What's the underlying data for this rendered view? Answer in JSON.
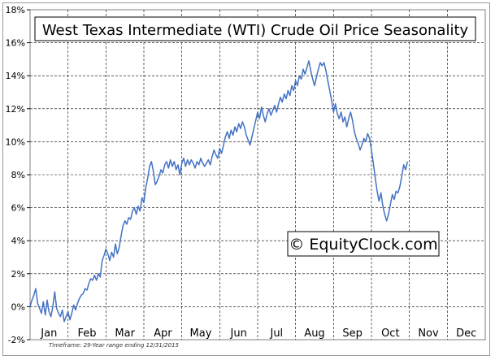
{
  "chart_data": {
    "type": "line",
    "title": "West Texas Intermediate (WTI) Crude Oil Price Seasonality",
    "watermark": "© EquityClock.com",
    "footnote": "Timeframe: 29-Year range ending 12/31/2015",
    "xlabel": "",
    "ylabel": "",
    "ylim": [
      -2,
      18
    ],
    "y_ticks": [
      -2,
      0,
      2,
      4,
      6,
      8,
      10,
      12,
      14,
      16,
      18
    ],
    "y_tick_labels": [
      "-2%",
      "0%",
      "2%",
      "4%",
      "6%",
      "8%",
      "10%",
      "12%",
      "14%",
      "16%",
      "18%"
    ],
    "x_range": [
      0,
      12
    ],
    "months": [
      "Jan",
      "Feb",
      "Mar",
      "Apr",
      "May",
      "Jun",
      "Jul",
      "Aug",
      "Sep",
      "Oct",
      "Nov",
      "Dec"
    ],
    "grid": true,
    "line_color": "#4472c4",
    "series": [
      {
        "points": [
          [
            0.0,
            0.0
          ],
          [
            0.05,
            0.4
          ],
          [
            0.1,
            0.7
          ],
          [
            0.15,
            1.1
          ],
          [
            0.2,
            0.2
          ],
          [
            0.25,
            -0.1
          ],
          [
            0.3,
            -0.4
          ],
          [
            0.35,
            0.3
          ],
          [
            0.4,
            -0.5
          ],
          [
            0.45,
            0.4
          ],
          [
            0.5,
            -0.3
          ],
          [
            0.55,
            -0.6
          ],
          [
            0.6,
            0.0
          ],
          [
            0.65,
            0.9
          ],
          [
            0.7,
            -0.1
          ],
          [
            0.75,
            -0.4
          ],
          [
            0.8,
            -0.6
          ],
          [
            0.85,
            -0.2
          ],
          [
            0.9,
            -0.9
          ],
          [
            0.95,
            -0.6
          ],
          [
            1.0,
            -0.3
          ],
          [
            1.05,
            -0.8
          ],
          [
            1.1,
            -0.4
          ],
          [
            1.15,
            0.1
          ],
          [
            1.2,
            -0.2
          ],
          [
            1.25,
            0.2
          ],
          [
            1.3,
            0.5
          ],
          [
            1.35,
            0.7
          ],
          [
            1.4,
            0.8
          ],
          [
            1.45,
            1.1
          ],
          [
            1.5,
            1.0
          ],
          [
            1.55,
            1.4
          ],
          [
            1.6,
            1.7
          ],
          [
            1.65,
            1.6
          ],
          [
            1.7,
            1.9
          ],
          [
            1.75,
            1.6
          ],
          [
            1.8,
            2.0
          ],
          [
            1.85,
            1.8
          ],
          [
            1.9,
            2.8
          ],
          [
            1.95,
            3.1
          ],
          [
            2.0,
            3.5
          ],
          [
            2.05,
            3.2
          ],
          [
            2.1,
            2.8
          ],
          [
            2.15,
            3.3
          ],
          [
            2.2,
            3.0
          ],
          [
            2.25,
            3.8
          ],
          [
            2.3,
            3.2
          ],
          [
            2.35,
            3.6
          ],
          [
            2.4,
            4.3
          ],
          [
            2.45,
            4.9
          ],
          [
            2.5,
            5.2
          ],
          [
            2.55,
            5.0
          ],
          [
            2.6,
            5.4
          ],
          [
            2.65,
            5.3
          ],
          [
            2.7,
            5.8
          ],
          [
            2.75,
            6.0
          ],
          [
            2.8,
            5.6
          ],
          [
            2.85,
            6.1
          ],
          [
            2.9,
            5.8
          ],
          [
            2.95,
            6.6
          ],
          [
            3.0,
            6.3
          ],
          [
            3.05,
            7.2
          ],
          [
            3.1,
            7.8
          ],
          [
            3.15,
            8.5
          ],
          [
            3.2,
            8.8
          ],
          [
            3.25,
            8.2
          ],
          [
            3.3,
            7.4
          ],
          [
            3.35,
            7.6
          ],
          [
            3.4,
            7.9
          ],
          [
            3.45,
            8.3
          ],
          [
            3.5,
            8.1
          ],
          [
            3.55,
            8.6
          ],
          [
            3.6,
            8.8
          ],
          [
            3.65,
            8.4
          ],
          [
            3.7,
            8.9
          ],
          [
            3.75,
            8.5
          ],
          [
            3.8,
            8.8
          ],
          [
            3.85,
            8.3
          ],
          [
            3.9,
            8.6
          ],
          [
            3.95,
            8.0
          ],
          [
            4.0,
            8.7
          ],
          [
            4.05,
            9.0
          ],
          [
            4.1,
            8.5
          ],
          [
            4.15,
            8.9
          ],
          [
            4.2,
            8.6
          ],
          [
            4.25,
            8.9
          ],
          [
            4.3,
            8.7
          ],
          [
            4.35,
            8.4
          ],
          [
            4.4,
            8.8
          ],
          [
            4.45,
            8.6
          ],
          [
            4.5,
            9.0
          ],
          [
            4.55,
            8.7
          ],
          [
            4.6,
            8.5
          ],
          [
            4.65,
            8.7
          ],
          [
            4.7,
            8.9
          ],
          [
            4.75,
            8.6
          ],
          [
            4.8,
            9.1
          ],
          [
            4.85,
            9.5
          ],
          [
            4.9,
            9.2
          ],
          [
            4.95,
            9.0
          ],
          [
            5.0,
            9.6
          ],
          [
            5.05,
            9.3
          ],
          [
            5.1,
            9.8
          ],
          [
            5.15,
            10.3
          ],
          [
            5.2,
            10.6
          ],
          [
            5.25,
            10.2
          ],
          [
            5.3,
            10.7
          ],
          [
            5.35,
            10.4
          ],
          [
            5.4,
            10.9
          ],
          [
            5.45,
            10.6
          ],
          [
            5.5,
            11.1
          ],
          [
            5.55,
            10.8
          ],
          [
            5.6,
            11.2
          ],
          [
            5.65,
            10.9
          ],
          [
            5.7,
            10.4
          ],
          [
            5.75,
            10.1
          ],
          [
            5.8,
            9.8
          ],
          [
            5.85,
            10.3
          ],
          [
            5.9,
            10.8
          ],
          [
            5.95,
            11.3
          ],
          [
            6.0,
            11.8
          ],
          [
            6.05,
            11.4
          ],
          [
            6.1,
            12.1
          ],
          [
            6.15,
            11.6
          ],
          [
            6.2,
            11.2
          ],
          [
            6.25,
            11.7
          ],
          [
            6.3,
            12.0
          ],
          [
            6.35,
            11.6
          ],
          [
            6.4,
            11.9
          ],
          [
            6.45,
            12.2
          ],
          [
            6.5,
            11.8
          ],
          [
            6.55,
            12.3
          ],
          [
            6.6,
            12.7
          ],
          [
            6.65,
            12.4
          ],
          [
            6.7,
            12.9
          ],
          [
            6.75,
            12.6
          ],
          [
            6.8,
            13.1
          ],
          [
            6.85,
            12.8
          ],
          [
            6.9,
            13.4
          ],
          [
            6.95,
            13.1
          ],
          [
            7.0,
            13.7
          ],
          [
            7.05,
            13.4
          ],
          [
            7.1,
            14.0
          ],
          [
            7.15,
            13.8
          ],
          [
            7.2,
            14.4
          ],
          [
            7.25,
            14.1
          ],
          [
            7.3,
            14.5
          ],
          [
            7.35,
            14.9
          ],
          [
            7.4,
            14.3
          ],
          [
            7.45,
            13.8
          ],
          [
            7.5,
            13.4
          ],
          [
            7.55,
            13.9
          ],
          [
            7.6,
            14.4
          ],
          [
            7.65,
            14.8
          ],
          [
            7.7,
            14.6
          ],
          [
            7.75,
            14.8
          ],
          [
            7.8,
            14.3
          ],
          [
            7.85,
            13.7
          ],
          [
            7.9,
            13.1
          ],
          [
            7.95,
            12.5
          ],
          [
            8.0,
            11.8
          ],
          [
            8.05,
            12.3
          ],
          [
            8.1,
            11.7
          ],
          [
            8.15,
            11.4
          ],
          [
            8.2,
            11.8
          ],
          [
            8.25,
            11.2
          ],
          [
            8.3,
            11.5
          ],
          [
            8.35,
            10.9
          ],
          [
            8.4,
            11.4
          ],
          [
            8.45,
            11.8
          ],
          [
            8.5,
            11.3
          ],
          [
            8.55,
            10.6
          ],
          [
            8.6,
            10.2
          ],
          [
            8.65,
            9.9
          ],
          [
            8.7,
            9.5
          ],
          [
            8.75,
            9.8
          ],
          [
            8.8,
            10.2
          ],
          [
            8.85,
            10.0
          ],
          [
            8.9,
            10.5
          ],
          [
            8.95,
            10.2
          ],
          [
            9.0,
            9.5
          ],
          [
            9.05,
            8.7
          ],
          [
            9.1,
            7.8
          ],
          [
            9.15,
            7.0
          ],
          [
            9.2,
            6.4
          ],
          [
            9.25,
            6.9
          ],
          [
            9.3,
            6.1
          ],
          [
            9.35,
            5.6
          ],
          [
            9.4,
            5.2
          ],
          [
            9.45,
            5.6
          ],
          [
            9.5,
            6.2
          ],
          [
            9.55,
            6.8
          ],
          [
            9.6,
            6.5
          ],
          [
            9.65,
            7.0
          ],
          [
            9.7,
            6.9
          ],
          [
            9.75,
            7.3
          ],
          [
            9.8,
            7.9
          ],
          [
            9.85,
            8.6
          ],
          [
            9.9,
            8.3
          ],
          [
            9.95,
            8.8
          ]
        ]
      }
    ]
  }
}
